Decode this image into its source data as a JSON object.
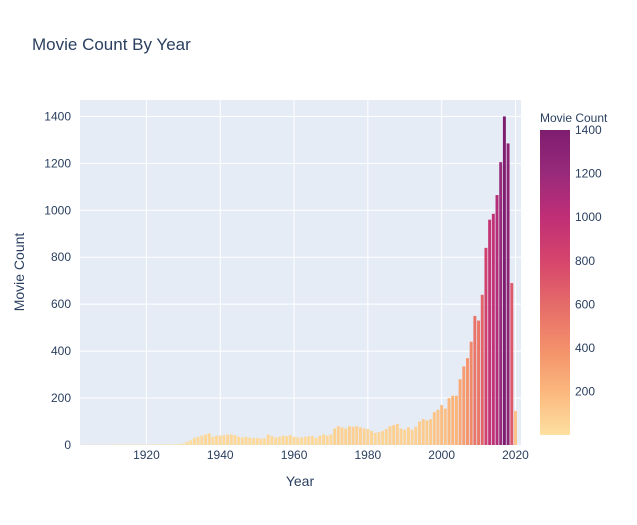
{
  "chart_data": {
    "type": "bar",
    "title": "Movie Count By Year",
    "xlabel": "Year",
    "ylabel": "Movie Count",
    "xlim": [
      1902,
      2021.5
    ],
    "ylim": [
      0,
      1470
    ],
    "x_ticks": [
      1920,
      1940,
      1960,
      1980,
      2000,
      2020
    ],
    "y_ticks": [
      0,
      200,
      400,
      600,
      800,
      1000,
      1200,
      1400
    ],
    "grid": true,
    "colorbar": {
      "title": "Movie Count",
      "ticks": [
        200,
        400,
        600,
        800,
        1000,
        1200,
        1400
      ],
      "range": [
        1,
        1400
      ],
      "colors": [
        "#fde0a1",
        "#fbb77c",
        "#f38f6a",
        "#e56b69",
        "#d6456c",
        "#c02e76",
        "#992a7b",
        "#7e1d6f"
      ]
    },
    "x": [
      1903,
      1904,
      1905,
      1906,
      1907,
      1908,
      1909,
      1910,
      1911,
      1912,
      1913,
      1914,
      1915,
      1916,
      1917,
      1918,
      1919,
      1920,
      1921,
      1922,
      1923,
      1924,
      1925,
      1926,
      1927,
      1928,
      1929,
      1930,
      1931,
      1932,
      1933,
      1934,
      1935,
      1936,
      1937,
      1938,
      1939,
      1940,
      1941,
      1942,
      1943,
      1944,
      1945,
      1946,
      1947,
      1948,
      1949,
      1950,
      1951,
      1952,
      1953,
      1954,
      1955,
      1956,
      1957,
      1958,
      1959,
      1960,
      1961,
      1962,
      1963,
      1964,
      1965,
      1966,
      1967,
      1968,
      1969,
      1970,
      1971,
      1972,
      1973,
      1974,
      1975,
      1976,
      1977,
      1978,
      1979,
      1980,
      1981,
      1982,
      1983,
      1984,
      1985,
      1986,
      1987,
      1988,
      1989,
      1990,
      1991,
      1992,
      1993,
      1994,
      1995,
      1996,
      1997,
      1998,
      1999,
      2000,
      2001,
      2002,
      2003,
      2004,
      2005,
      2006,
      2007,
      2008,
      2009,
      2010,
      2011,
      2012,
      2013,
      2014,
      2015,
      2016,
      2017,
      2018,
      2019,
      2020
    ],
    "values": [
      1,
      1,
      1,
      1,
      1,
      1,
      1,
      1,
      2,
      2,
      2,
      2,
      2,
      2,
      2,
      2,
      2,
      2,
      2,
      2,
      3,
      3,
      3,
      3,
      2,
      3,
      4,
      6,
      14,
      20,
      30,
      35,
      40,
      45,
      50,
      35,
      40,
      40,
      42,
      45,
      45,
      42,
      35,
      32,
      35,
      32,
      30,
      30,
      28,
      28,
      45,
      38,
      32,
      35,
      40,
      38,
      42,
      35,
      32,
      32,
      35,
      38,
      38,
      30,
      40,
      45,
      40,
      45,
      70,
      80,
      75,
      70,
      80,
      78,
      80,
      75,
      70,
      68,
      60,
      52,
      55,
      60,
      68,
      80,
      85,
      90,
      70,
      65,
      75,
      65,
      78,
      100,
      110,
      105,
      110,
      140,
      150,
      170,
      155,
      200,
      210,
      210,
      280,
      335,
      370,
      440,
      550,
      530,
      640,
      840,
      960,
      985,
      1065,
      1205,
      1400,
      1285,
      690,
      145
    ]
  }
}
